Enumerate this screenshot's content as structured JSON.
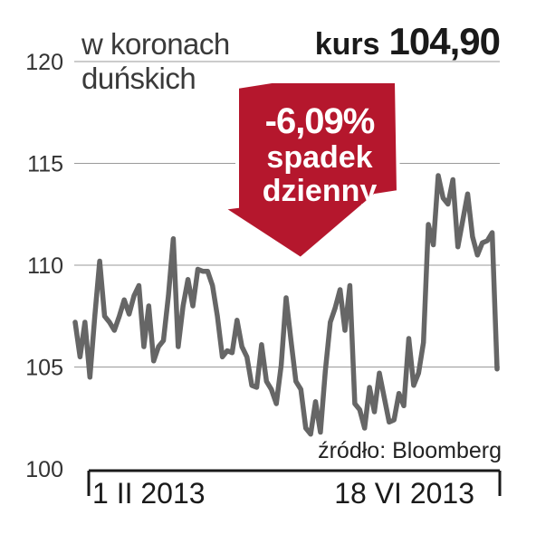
{
  "header": {
    "unit_line1": "w koronach",
    "unit_line2": "duńskich",
    "kurs_label": "kurs",
    "kurs_value": "104,90"
  },
  "badge": {
    "change": "-6,09%",
    "line1": "spadek",
    "line2": "dzienny",
    "color": "#b5172d"
  },
  "source": "źródło: Bloomberg",
  "chart_data": {
    "type": "line",
    "title": "",
    "xlabel": "",
    "ylabel": "w koronach duńskich",
    "ylim": [
      100,
      120
    ],
    "yticks": [
      120,
      115,
      110,
      105,
      100
    ],
    "xtick_labels": [
      "1 II 2013",
      "18 VI 2013"
    ],
    "grid": true,
    "line_color": "#666666",
    "series": [
      {
        "values": [
          107.2,
          105.5,
          107.2,
          104.5,
          107.5,
          110.2,
          107.5,
          107.2,
          106.8,
          107.5,
          108.3,
          107.6,
          108.5,
          109.0,
          106.0,
          108.0,
          105.3,
          106.0,
          106.3,
          108.5,
          111.3,
          106.0,
          108.0,
          109.3,
          108.0,
          109.8,
          109.7,
          109.7,
          109.0,
          107.5,
          105.5,
          105.8,
          105.7,
          107.3,
          106.0,
          105.5,
          104.1,
          104.0,
          106.1,
          104.3,
          103.9,
          103.2,
          105.1,
          108.4,
          106.3,
          104.3,
          103.9,
          102.0,
          101.7,
          103.3,
          101.8,
          104.8,
          107.2,
          107.9,
          108.8,
          106.8,
          109.0,
          103.2,
          102.9,
          102.0,
          104.0,
          102.8,
          104.7,
          103.5,
          102.3,
          102.4,
          103.7,
          103.1,
          106.4,
          104.1,
          104.7,
          106.2,
          112.0,
          111.0,
          114.4,
          113.3,
          113.0,
          114.2,
          110.9,
          112.2,
          113.5,
          111.4,
          110.5,
          111.1,
          111.2,
          111.6,
          104.9
        ]
      }
    ]
  }
}
